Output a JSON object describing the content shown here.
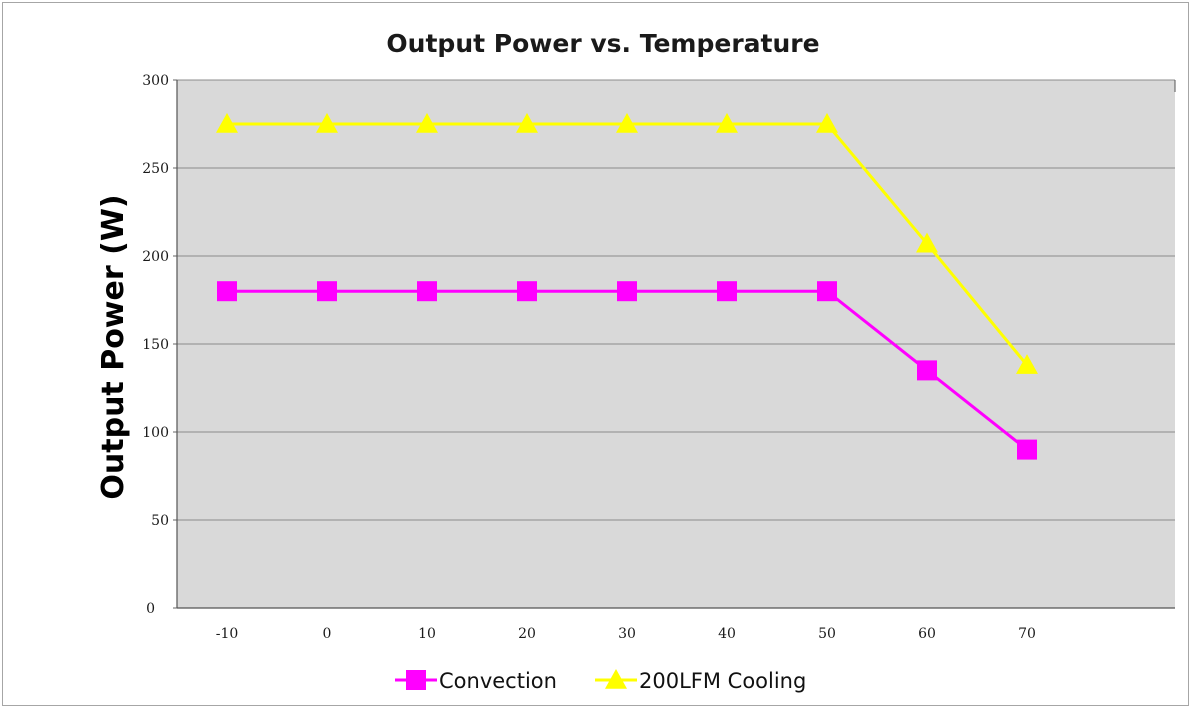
{
  "chart_data": {
    "type": "line",
    "title": "Output Power  vs. Temperature",
    "xlabel": "",
    "ylabel": "Output Power (W)",
    "x": [
      -10,
      0,
      10,
      20,
      30,
      40,
      50,
      60,
      70
    ],
    "ylim": [
      0,
      300
    ],
    "yticks": [
      0,
      50,
      100,
      150,
      200,
      250,
      300
    ],
    "grid": true,
    "legend_position": "bottom",
    "plot_background": "#d9d9d9",
    "series": [
      {
        "name": "Convection",
        "marker": "square",
        "color": "#ff00ff",
        "values": [
          180,
          180,
          180,
          180,
          180,
          180,
          180,
          135,
          90
        ]
      },
      {
        "name": "200LFM Cooling",
        "marker": "triangle",
        "color": "#ffff00",
        "values": [
          275,
          275,
          275,
          275,
          275,
          275,
          275,
          207,
          138
        ]
      }
    ]
  }
}
